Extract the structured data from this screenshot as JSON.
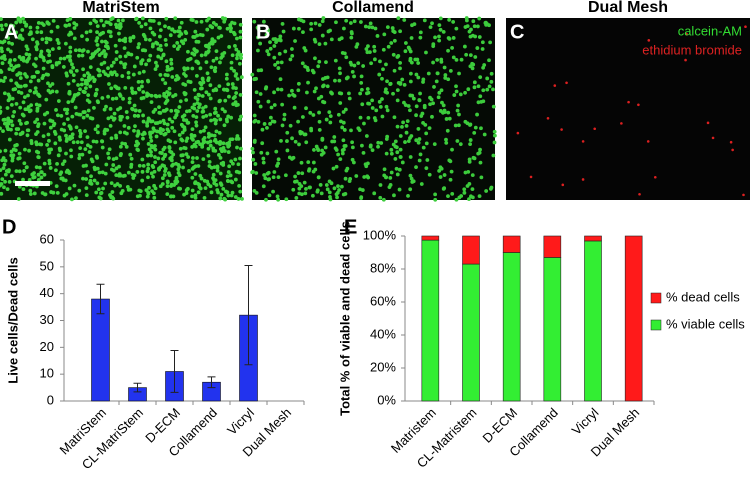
{
  "panels": [
    {
      "letter": "A",
      "title": "MatriStem"
    },
    {
      "letter": "B",
      "title": "Collamend"
    },
    {
      "letter": "C",
      "title": "Dual Mesh",
      "stains": [
        "calcein-AM",
        "ethidium bromide"
      ]
    }
  ],
  "chart_data": [
    {
      "type": "bar",
      "label": "D",
      "y_label": "Live cells/Dead cells",
      "categories": [
        "MatriStem",
        "CL-MatriStem",
        "D-ECM",
        "Collamend",
        "Vicryl",
        "Dual Mesh"
      ],
      "values": [
        38,
        5,
        11,
        7,
        32,
        0
      ],
      "errors": [
        5.5,
        1.6,
        7.8,
        2,
        18.5,
        0
      ],
      "color": "#2233ee",
      "ylim": [
        0,
        60
      ],
      "yticks": [
        0,
        10,
        20,
        30,
        40,
        50,
        60
      ]
    },
    {
      "type": "stacked_bar",
      "label": "E",
      "y_label": "Total % of viable and dead cells",
      "categories": [
        "Matristem",
        "CL-Matristem",
        "D-ECM",
        "Collamend",
        "Vicryl",
        "Dual Mesh"
      ],
      "series": [
        {
          "name": "% viable cells",
          "color": "#33ee33",
          "values": [
            97.5,
            83,
            90,
            87,
            97,
            0
          ]
        },
        {
          "name": "% dead cells",
          "color": "#ff1a1a",
          "values": [
            2.5,
            17,
            10,
            13,
            3,
            100
          ]
        }
      ],
      "ylim": [
        0,
        100
      ],
      "yticks": [
        {
          "value": 0,
          "label": "0%"
        },
        {
          "value": 20,
          "label": "20%"
        },
        {
          "value": 40,
          "label": "40%"
        },
        {
          "value": 60,
          "label": "60%"
        },
        {
          "value": 80,
          "label": "80%"
        },
        {
          "value": 100,
          "label": "100%"
        }
      ],
      "legend": "right"
    }
  ]
}
